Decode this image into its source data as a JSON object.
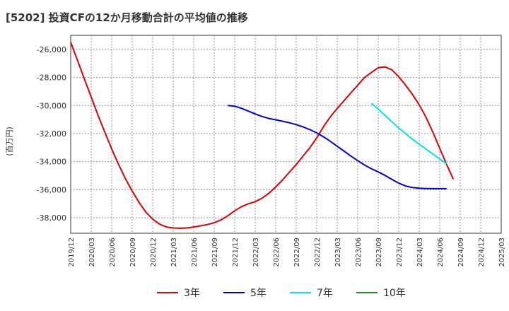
{
  "header": {
    "title": "[5202]  投資CFの12か月移動合計の平均値の推移"
  },
  "chart_data": {
    "type": "line",
    "ylabel": "(百万円)",
    "ylim": [
      -39100,
      -25000
    ],
    "y_ticks": [
      -26000,
      -28000,
      -30000,
      -32000,
      -34000,
      -36000,
      -38000
    ],
    "y_tick_labels": [
      "-26,000",
      "-28,000",
      "-30,000",
      "-32,000",
      "-34,000",
      "-36,000",
      "-38,000"
    ],
    "x_ticks": [
      "2019/12",
      "2020/03",
      "2020/06",
      "2020/09",
      "2020/12",
      "2021/03",
      "2021/06",
      "2021/09",
      "2021/12",
      "2022/03",
      "2022/06",
      "2022/09",
      "2022/12",
      "2023/03",
      "2023/06",
      "2023/09",
      "2023/12",
      "2024/03",
      "2024/06",
      "2024/09",
      "2024/12",
      "2025/03"
    ],
    "grid": true,
    "legend_position": "bottom",
    "series": [
      {
        "name": "3年",
        "color": "#e00000",
        "points": [
          [
            "2019/12",
            -25500
          ],
          [
            "2020/01",
            -26800
          ],
          [
            "2020/02",
            -28100
          ],
          [
            "2020/03",
            -29400
          ],
          [
            "2020/04",
            -30700
          ],
          [
            "2020/05",
            -31900
          ],
          [
            "2020/06",
            -33100
          ],
          [
            "2020/07",
            -34200
          ],
          [
            "2020/08",
            -35200
          ],
          [
            "2020/09",
            -36100
          ],
          [
            "2020/10",
            -36900
          ],
          [
            "2020/11",
            -37600
          ],
          [
            "2020/12",
            -38100
          ],
          [
            "2021/01",
            -38450
          ],
          [
            "2021/02",
            -38650
          ],
          [
            "2021/03",
            -38720
          ],
          [
            "2021/04",
            -38750
          ],
          [
            "2021/05",
            -38720
          ],
          [
            "2021/06",
            -38650
          ],
          [
            "2021/07",
            -38570
          ],
          [
            "2021/08",
            -38480
          ],
          [
            "2021/09",
            -38350
          ],
          [
            "2021/10",
            -38150
          ],
          [
            "2021/11",
            -37850
          ],
          [
            "2021/12",
            -37500
          ],
          [
            "2022/01",
            -37200
          ],
          [
            "2022/02",
            -37000
          ],
          [
            "2022/03",
            -36850
          ],
          [
            "2022/04",
            -36600
          ],
          [
            "2022/05",
            -36250
          ],
          [
            "2022/06",
            -35800
          ],
          [
            "2022/07",
            -35300
          ],
          [
            "2022/08",
            -34750
          ],
          [
            "2022/09",
            -34200
          ],
          [
            "2022/10",
            -33600
          ],
          [
            "2022/11",
            -33000
          ],
          [
            "2022/12",
            -32300
          ],
          [
            "2023/01",
            -31500
          ],
          [
            "2023/02",
            -30800
          ],
          [
            "2023/03",
            -30200
          ],
          [
            "2023/04",
            -29650
          ],
          [
            "2023/05",
            -29100
          ],
          [
            "2023/06",
            -28550
          ],
          [
            "2023/07",
            -28000
          ],
          [
            "2023/08",
            -27650
          ],
          [
            "2023/09",
            -27300
          ],
          [
            "2023/10",
            -27250
          ],
          [
            "2023/11",
            -27450
          ],
          [
            "2023/12",
            -27950
          ],
          [
            "2024/01",
            -28550
          ],
          [
            "2024/02",
            -29200
          ],
          [
            "2024/03",
            -29950
          ],
          [
            "2024/04",
            -30850
          ],
          [
            "2024/05",
            -31900
          ],
          [
            "2024/06",
            -33050
          ],
          [
            "2024/07",
            -34200
          ],
          [
            "2024/08",
            -35250
          ]
        ]
      },
      {
        "name": "5年",
        "color": "#0000c8",
        "points": [
          [
            "2021/11",
            -30000
          ],
          [
            "2021/12",
            -30050
          ],
          [
            "2022/01",
            -30200
          ],
          [
            "2022/02",
            -30400
          ],
          [
            "2022/03",
            -30600
          ],
          [
            "2022/04",
            -30780
          ],
          [
            "2022/05",
            -30920
          ],
          [
            "2022/06",
            -31020
          ],
          [
            "2022/07",
            -31120
          ],
          [
            "2022/08",
            -31230
          ],
          [
            "2022/09",
            -31360
          ],
          [
            "2022/10",
            -31520
          ],
          [
            "2022/11",
            -31720
          ],
          [
            "2022/12",
            -31950
          ],
          [
            "2023/01",
            -32230
          ],
          [
            "2023/02",
            -32550
          ],
          [
            "2023/03",
            -32900
          ],
          [
            "2023/04",
            -33250
          ],
          [
            "2023/05",
            -33600
          ],
          [
            "2023/06",
            -33930
          ],
          [
            "2023/07",
            -34240
          ],
          [
            "2023/08",
            -34500
          ],
          [
            "2023/09",
            -34730
          ],
          [
            "2023/10",
            -34980
          ],
          [
            "2023/11",
            -35260
          ],
          [
            "2023/12",
            -35530
          ],
          [
            "2024/01",
            -35730
          ],
          [
            "2024/02",
            -35840
          ],
          [
            "2024/03",
            -35890
          ],
          [
            "2024/04",
            -35910
          ],
          [
            "2024/05",
            -35920
          ],
          [
            "2024/06",
            -35920
          ],
          [
            "2024/07",
            -35920
          ]
        ]
      },
      {
        "name": "7年",
        "color": "#00e5e5",
        "points": [
          [
            "2023/08",
            -29850
          ],
          [
            "2023/09",
            -30250
          ],
          [
            "2023/10",
            -30700
          ],
          [
            "2023/11",
            -31150
          ],
          [
            "2023/12",
            -31600
          ],
          [
            "2024/01",
            -32000
          ],
          [
            "2024/02",
            -32400
          ],
          [
            "2024/03",
            -32750
          ],
          [
            "2024/04",
            -33100
          ],
          [
            "2024/05",
            -33450
          ],
          [
            "2024/06",
            -33800
          ],
          [
            "2024/07",
            -34150
          ]
        ]
      },
      {
        "name": "10年",
        "color": "#228b22",
        "points": []
      }
    ]
  }
}
